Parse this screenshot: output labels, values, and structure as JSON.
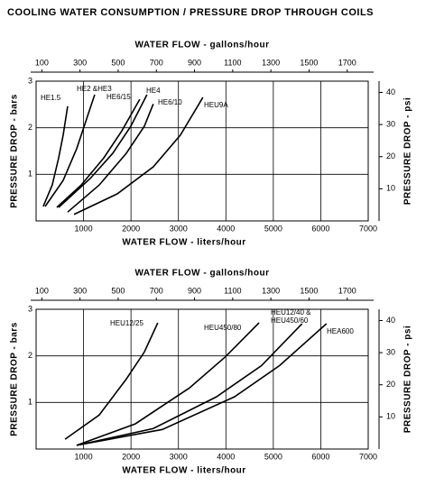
{
  "title": "COOLING WATER CONSUMPTION / PRESSURE DROP THROUGH COILS",
  "chart_data": [
    {
      "type": "line",
      "xlabel": "WATER FLOW - liters/hour",
      "x2label": "WATER FLOW - gallons/hour",
      "ylabel": "PRESSURE DROP - bars",
      "y2label": "PRESSURE DROP - psi",
      "xlim": [
        0,
        7000
      ],
      "xticks": [
        1000,
        2000,
        3000,
        4000,
        5000,
        6000,
        7000
      ],
      "x2lim": [
        70,
        1810
      ],
      "x2ticks": [
        100,
        300,
        500,
        700,
        900,
        1100,
        1300,
        1500,
        1700
      ],
      "ylim": [
        0,
        3
      ],
      "yticks": [
        1,
        2,
        3
      ],
      "y2lim": [
        0,
        43.5
      ],
      "y2ticks": [
        10,
        20,
        30,
        40
      ],
      "grid": true,
      "series": [
        {
          "name": "HE1.5",
          "color": "#000000",
          "x": [
            150,
            340,
            475,
            570,
            665
          ],
          "values": [
            0.31,
            0.77,
            1.35,
            1.84,
            2.46
          ]
        },
        {
          "name": "HE2 &HE3",
          "color": "#000000",
          "x": [
            190,
            570,
            855,
            1045,
            1235
          ],
          "values": [
            0.31,
            0.87,
            1.55,
            2.13,
            2.71
          ]
        },
        {
          "name": "HE6/15",
          "color": "#000000",
          "x": [
            437,
            950,
            1425,
            1805,
            2185
          ],
          "values": [
            0.29,
            0.77,
            1.35,
            1.93,
            2.61
          ]
        },
        {
          "name": "HE4",
          "color": "#000000",
          "x": [
            475,
            1140,
            1615,
            1995,
            2337
          ],
          "values": [
            0.29,
            0.91,
            1.45,
            2.03,
            2.71
          ]
        },
        {
          "name": "HE6/10",
          "color": "#000000",
          "x": [
            665,
            1330,
            1900,
            2280,
            2470
          ],
          "values": [
            0.19,
            0.77,
            1.45,
            2.03,
            2.51
          ]
        },
        {
          "name": "HEU9A",
          "color": "#000000",
          "x": [
            800,
            1710,
            2470,
            3040,
            3515
          ],
          "values": [
            0.14,
            0.58,
            1.16,
            1.84,
            2.65
          ]
        }
      ]
    },
    {
      "type": "line",
      "xlabel": "WATER FLOW - liters/hour",
      "x2label": "WATER FLOW - gallons/hour",
      "ylabel": "PRESSURE DROP - bars",
      "y2label": "PRESSURE DROP - psi",
      "xlim": [
        0,
        7000
      ],
      "xticks": [
        1000,
        2000,
        3000,
        4000,
        5000,
        6000,
        7000
      ],
      "x2lim": [
        70,
        1810
      ],
      "x2ticks": [
        100,
        300,
        500,
        700,
        900,
        1100,
        1300,
        1500,
        1700
      ],
      "ylim": [
        0,
        3
      ],
      "yticks": [
        1,
        2,
        3
      ],
      "y2lim": [
        0,
        43.5
      ],
      "y2ticks": [
        10,
        20,
        30,
        40
      ],
      "grid": true,
      "series": [
        {
          "name": "HEU12/25",
          "color": "#000000",
          "x": [
            610,
            1330,
            1900,
            2280,
            2565
          ],
          "values": [
            0.21,
            0.73,
            1.5,
            2.08,
            2.71
          ]
        },
        {
          "name": "HEU450/80",
          "color": "#000000",
          "x": [
            855,
            2090,
            3230,
            3990,
            4700
          ],
          "values": [
            0.08,
            0.54,
            1.31,
            1.98,
            2.71
          ]
        },
        {
          "name": "HEU12/40 &\nHEU450/60",
          "color": "#000000",
          "x": [
            855,
            2470,
            3800,
            4750,
            5605
          ],
          "values": [
            0.08,
            0.44,
            1.12,
            1.79,
            2.69
          ]
        },
        {
          "name": "HEA600",
          "color": "#000000",
          "x": [
            855,
            2660,
            4180,
            5130,
            6120
          ],
          "values": [
            0.08,
            0.42,
            1.12,
            1.79,
            2.69
          ]
        }
      ]
    }
  ]
}
